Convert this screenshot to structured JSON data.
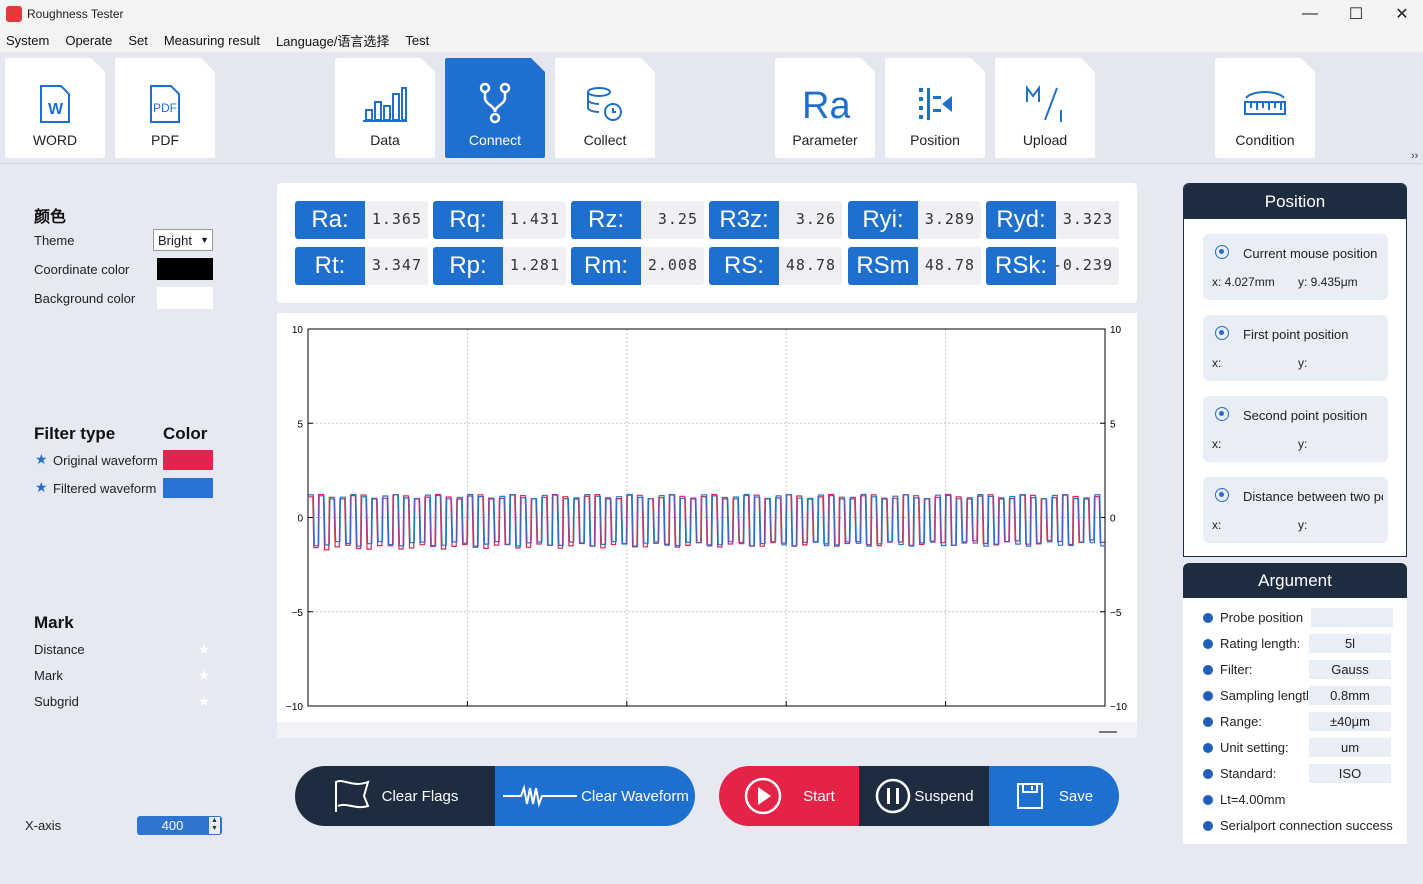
{
  "window": {
    "title": "Roughness Tester",
    "minimize": "—",
    "maximize": "☐",
    "close": "✕"
  },
  "menu": [
    "System",
    "Operate",
    "Set",
    "Measuring result",
    "Language/语言选择",
    "Test"
  ],
  "toolbar": {
    "word": "WORD",
    "pdf": "PDF",
    "data": "Data",
    "connect": "Connect",
    "collect": "Collect",
    "parameter": "Parameter",
    "position": "Position",
    "upload": "Upload",
    "condition": "Condition",
    "more": "››",
    "active": "connect",
    "accent": "#1f6fcf"
  },
  "left": {
    "color_heading": "颜色",
    "theme_label": "Theme",
    "theme_value": "Bright",
    "coord_label": "Coordinate color",
    "coord_color": "#000000",
    "bg_label": "Background color",
    "bg_color": "#ffffff",
    "filter_heading": "Filter type",
    "color_heading2": "Color",
    "original_label": "Original waveform",
    "original_color": "#e0244f",
    "filtered_label": "Filtered waveform",
    "filtered_color": "#2a72d4",
    "mark_heading": "Mark",
    "distance_label": "Distance",
    "mark_label": "Mark",
    "subgrid_label": "Subgrid",
    "xaxis_label": "X-axis",
    "xaxis_value": "400"
  },
  "params": [
    {
      "name": "Ra:",
      "value": "1.365"
    },
    {
      "name": "Rq:",
      "value": "1.431"
    },
    {
      "name": "Rz:",
      "value": "3.25"
    },
    {
      "name": "R3z:",
      "value": "3.26"
    },
    {
      "name": "Ryi:",
      "value": "3.289"
    },
    {
      "name": "Ryd:",
      "value": "3.323"
    },
    {
      "name": "Rt:",
      "value": "3.347"
    },
    {
      "name": "Rp:",
      "value": "1.281"
    },
    {
      "name": "Rm:",
      "value": "2.008"
    },
    {
      "name": "RS:",
      "value": "48.78"
    },
    {
      "name": "RSm",
      "value": "48.78"
    },
    {
      "name": "RSk:",
      "value": "-0.239"
    }
  ],
  "chart_data": {
    "type": "line",
    "ylim": [
      -10,
      10
    ],
    "yticks": [
      10,
      5,
      0,
      -5,
      -10
    ],
    "ytick_labels": [
      "10",
      "5",
      "0",
      "−5",
      "−10"
    ],
    "series": [
      {
        "name": "Original waveform",
        "color": "#e0244f",
        "high": 1.1,
        "low": -1.6
      },
      {
        "name": "Filtered waveform",
        "color": "#2a72d4",
        "high": 1.1,
        "low": -1.4
      }
    ],
    "periods": 75,
    "grid": true
  },
  "actions": {
    "clear_flags": "Clear Flags",
    "clear_waveform": "Clear Waveform",
    "start": "Start",
    "suspend": "Suspend",
    "save": "Save"
  },
  "position": {
    "title": "Position",
    "cards": [
      {
        "title": "Current mouse position",
        "x": "x: 4.027mm",
        "y": "y: 9.435μm"
      },
      {
        "title": "First point position",
        "x": "x:",
        "y": "y:"
      },
      {
        "title": "Second point position",
        "x": "x:",
        "y": "y:"
      },
      {
        "title": "Distance between two points",
        "x": "x:",
        "y": "y:"
      }
    ]
  },
  "argument": {
    "title": "Argument",
    "rows": [
      {
        "label": "Probe position",
        "value": ""
      },
      {
        "label": "Rating length:",
        "value": "5l"
      },
      {
        "label": "Filter:",
        "value": "Gauss"
      },
      {
        "label": "Sampling length:",
        "value": "0.8mm"
      },
      {
        "label": "Range:",
        "value": "±40μm"
      },
      {
        "label": "Unit setting:",
        "value": "um"
      },
      {
        "label": "Standard:",
        "value": "ISO"
      }
    ],
    "lt": "Lt=4.00mm",
    "status": "Serialport connection success"
  }
}
